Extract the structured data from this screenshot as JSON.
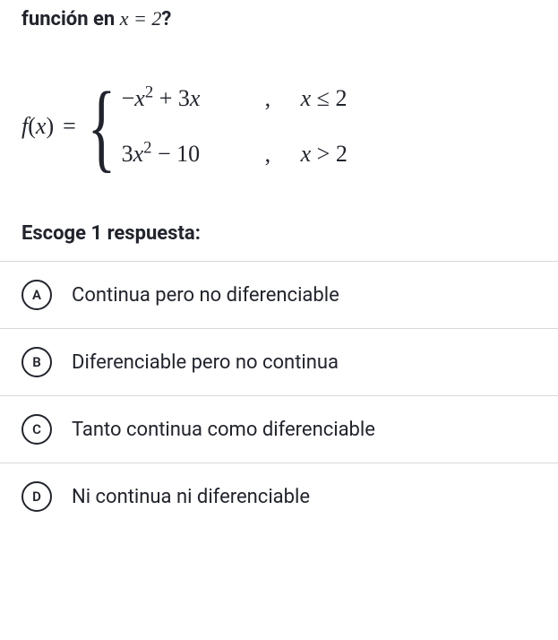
{
  "question": {
    "prefix": "función en ",
    "var": "x",
    "eq": " = ",
    "val": "2",
    "suffix": "?"
  },
  "function": {
    "lhs_f": "f",
    "lhs_open": "(",
    "lhs_var": "x",
    "lhs_close": ")",
    "eq": "=",
    "cases": [
      {
        "expr_html": "−<span class='mi'>x</span><span class='sup'>2</span> + 3<span class='mi'>x</span>",
        "cond_var": "x",
        "cond_op": "≤",
        "cond_val": "2"
      },
      {
        "expr_html": "3<span class='mi'>x</span><span class='sup'>2</span> − 10",
        "cond_var": "x",
        "cond_op": ">",
        "cond_val": "2"
      }
    ]
  },
  "instruction": "Escoge 1 respuesta:",
  "options": [
    {
      "letter": "A",
      "text": "Continua pero no diferenciable"
    },
    {
      "letter": "B",
      "text": "Diferenciable pero no continua"
    },
    {
      "letter": "C",
      "text": "Tanto continua como diferenciable"
    },
    {
      "letter": "D",
      "text": "Ni continua ni diferenciable"
    }
  ],
  "styling": {
    "background_color": "#ffffff",
    "text_color": "#21242c",
    "divider_color": "#d6d8da",
    "circle_border_color": "#21242c",
    "title_fontsize": 22,
    "option_fontsize": 22,
    "letter_fontsize": 15,
    "circle_diameter": 34,
    "math_fontsize": 26
  }
}
